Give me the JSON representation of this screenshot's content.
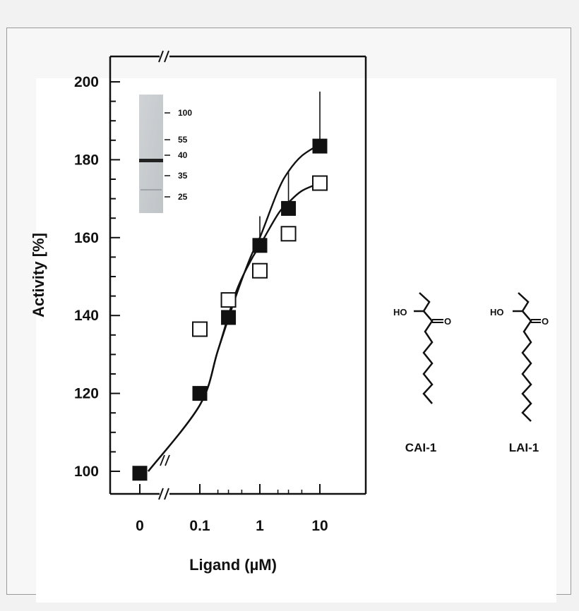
{
  "chart_data": {
    "type": "scatter",
    "xlabel": "Ligand (µM)",
    "ylabel": "Activity [%]",
    "x_scale": "log with break at 0",
    "x_ticks": [
      "0",
      "0.1",
      "1",
      "10"
    ],
    "y_ticks": [
      100,
      120,
      140,
      160,
      180,
      200
    ],
    "ylim": [
      100,
      200
    ],
    "series": [
      {
        "marker": "filled-square",
        "x": [
          0,
          0.1,
          0.3,
          1,
          3,
          10
        ],
        "y": [
          99.5,
          120,
          139.5,
          158,
          167.5,
          183.5
        ],
        "error_upper": [
          null,
          null,
          null,
          165.5,
          177,
          197.5
        ],
        "fit": [
          [
            0,
            100
          ],
          [
            0.1,
            117
          ],
          [
            0.2,
            131
          ],
          [
            0.4,
            145
          ],
          [
            0.7,
            155
          ],
          [
            1,
            160
          ],
          [
            2,
            172
          ],
          [
            3,
            177
          ],
          [
            5,
            181
          ],
          [
            10,
            184
          ]
        ]
      },
      {
        "marker": "open-square",
        "x": [
          0.1,
          0.3,
          1,
          3,
          10
        ],
        "y": [
          136.5,
          144,
          151.5,
          161,
          174
        ],
        "fit": [
          [
            0,
            100
          ],
          [
            0.1,
            117
          ],
          [
            0.2,
            131
          ],
          [
            0.4,
            146
          ],
          [
            0.7,
            154
          ],
          [
            1,
            158
          ],
          [
            2,
            166
          ],
          [
            3,
            169
          ],
          [
            5,
            172
          ],
          [
            10,
            174
          ]
        ]
      }
    ],
    "inset_blot": {
      "markers": [
        "100",
        "55",
        "40",
        "35",
        "25"
      ]
    }
  },
  "structures": [
    {
      "name": "CAI-1",
      "ho": "HO",
      "o": "O"
    },
    {
      "name": "LAI-1",
      "ho": "HO",
      "o": "O"
    }
  ],
  "break_marks": [
    "//",
    "//",
    "//"
  ]
}
